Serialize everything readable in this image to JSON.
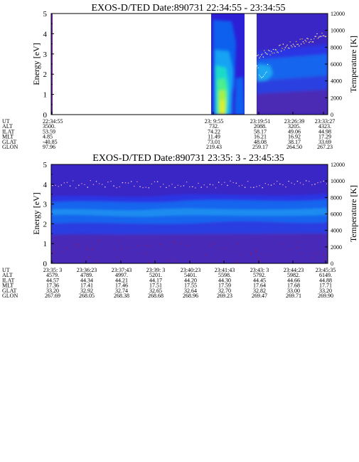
{
  "chart_data": [
    {
      "type": "heatmap",
      "title": "EXOS-D/TED   Date:890731  22:34:55 - 23:34:55",
      "ylabel": "Energy [eV]",
      "y2label": "Temperature [K]",
      "ylim": [
        0,
        5
      ],
      "y2lim": [
        0,
        12000
      ],
      "yticks": [
        "0",
        "1",
        "2",
        "3",
        "4",
        "5"
      ],
      "y2ticks": [
        "0",
        "2000",
        "4000",
        "6000",
        "8000",
        "10000",
        "12000"
      ],
      "column_labels": [
        "UT",
        "ALT",
        "ILAT",
        "MLT",
        "GLAT",
        "GLON"
      ],
      "ticks": [
        {
          "ut": "22:34:55",
          "alt": "3500.",
          "ilat": "53.59",
          "mlt": "4.85",
          "glat": "-40.85",
          "glon": "97.96"
        },
        {
          "ut": "23: 9:55",
          "alt": "732.",
          "ilat": "74.22",
          "mlt": "11.49",
          "glat": "73.01",
          "glon": "219.43"
        },
        {
          "ut": "23:19:51",
          "alt": "2088.",
          "ilat": "58.17",
          "mlt": "16.21",
          "glat": "48.08",
          "glon": "259.17"
        },
        {
          "ut": "23:26:39",
          "alt": "3205.",
          "ilat": "49.06",
          "mlt": "16.92",
          "glat": "38.17",
          "glon": "264.50"
        },
        {
          "ut": "23:33:27",
          "alt": "4323.",
          "ilat": "44.98",
          "mlt": "17.29",
          "glat": "33.69",
          "glon": "267.23"
        }
      ]
    },
    {
      "type": "heatmap",
      "title": "EXOS-D/TED   Date:890731  23:35: 3 - 23:45:35",
      "ylabel": "Energy [eV]",
      "y2label": "Temperature [K]",
      "ylim": [
        0,
        5
      ],
      "y2lim": [
        0,
        12000
      ],
      "yticks": [
        "0",
        "1",
        "2",
        "3",
        "4",
        "5"
      ],
      "y2ticks": [
        "0",
        "2000",
        "4000",
        "6000",
        "8000",
        "10000",
        "12000"
      ],
      "column_labels": [
        "UT",
        "ALT",
        "ILAT",
        "MLT",
        "GLAT",
        "GLON"
      ],
      "ticks": [
        {
          "ut": "23:35: 3",
          "alt": "4579.",
          "ilat": "44.57",
          "mlt": "17.36",
          "glat": "33.20",
          "glon": "267.69"
        },
        {
          "ut": "23:36:23",
          "alt": "4789.",
          "ilat": "44.34",
          "mlt": "17.41",
          "glat": "32.92",
          "glon": "268.05"
        },
        {
          "ut": "23:37:43",
          "alt": "4997.",
          "ilat": "44.21",
          "mlt": "17.46",
          "glat": "32.74",
          "glon": "268.38"
        },
        {
          "ut": "23:39: 3",
          "alt": "5201.",
          "ilat": "44.17",
          "mlt": "17.51",
          "glat": "32.65",
          "glon": "268.68"
        },
        {
          "ut": "23:40:23",
          "alt": "5401.",
          "ilat": "44.20",
          "mlt": "17.55",
          "glat": "32.64",
          "glon": "268.96"
        },
        {
          "ut": "23:41:43",
          "alt": "5598.",
          "ilat": "44.30",
          "mlt": "17.59",
          "glat": "32.70",
          "glon": "269.23"
        },
        {
          "ut": "23:43: 3",
          "alt": "5792.",
          "ilat": "44.45",
          "mlt": "17.64",
          "glat": "32.82",
          "glon": "269.47"
        },
        {
          "ut": "23:44:23",
          "alt": "5982.",
          "ilat": "44.66",
          "mlt": "17.68",
          "glat": "33.00",
          "glon": "269.71"
        },
        {
          "ut": "23:45:35",
          "alt": "6149.",
          "ilat": "44.88",
          "mlt": "17.71",
          "glat": "33.20",
          "glon": "269.90"
        }
      ]
    }
  ]
}
